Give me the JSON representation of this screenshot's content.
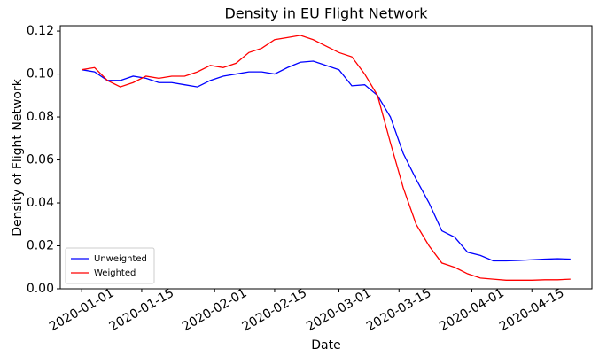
{
  "chart_data": {
    "type": "line",
    "title": "Density in EU Flight Network",
    "x_label": "Date",
    "y_label": "Density of Flight Network",
    "x": [
      "2020-01-01",
      "2020-01-04",
      "2020-01-07",
      "2020-01-10",
      "2020-01-13",
      "2020-01-16",
      "2020-01-19",
      "2020-01-22",
      "2020-01-25",
      "2020-01-28",
      "2020-01-31",
      "2020-02-03",
      "2020-02-06",
      "2020-02-09",
      "2020-02-12",
      "2020-02-15",
      "2020-02-18",
      "2020-02-21",
      "2020-02-24",
      "2020-02-27",
      "2020-03-01",
      "2020-03-04",
      "2020-03-07",
      "2020-03-10",
      "2020-03-13",
      "2020-03-16",
      "2020-03-19",
      "2020-03-22",
      "2020-03-25",
      "2020-03-28",
      "2020-03-31",
      "2020-04-03",
      "2020-04-06",
      "2020-04-09",
      "2020-04-12",
      "2020-04-15",
      "2020-04-18",
      "2020-04-21",
      "2020-04-24"
    ],
    "series": [
      {
        "name": "Unweighted",
        "color": "#0000ff",
        "values": [
          0.102,
          0.101,
          0.097,
          0.097,
          0.099,
          0.098,
          0.096,
          0.096,
          0.095,
          0.094,
          0.097,
          0.099,
          0.1,
          0.101,
          0.101,
          0.1,
          0.103,
          0.1055,
          0.106,
          0.104,
          0.102,
          0.0945,
          0.095,
          0.09,
          0.08,
          0.063,
          0.051,
          0.04,
          0.027,
          0.024,
          0.017,
          0.0155,
          0.013,
          0.013,
          0.0132,
          0.0135,
          0.0138,
          0.014,
          0.0138
        ]
      },
      {
        "name": "Weighted",
        "color": "#ff0000",
        "values": [
          0.102,
          0.103,
          0.097,
          0.094,
          0.096,
          0.099,
          0.098,
          0.099,
          0.099,
          0.101,
          0.104,
          0.103,
          0.105,
          0.11,
          0.112,
          0.116,
          0.117,
          0.118,
          0.116,
          0.113,
          0.11,
          0.108,
          0.1,
          0.09,
          0.068,
          0.047,
          0.03,
          0.02,
          0.012,
          0.01,
          0.007,
          0.005,
          0.0045,
          0.004,
          0.004,
          0.004,
          0.0042,
          0.0042,
          0.0045
        ]
      }
    ],
    "xlim": [
      "2019-12-27",
      "2020-04-29"
    ],
    "xticks": [
      "2020-01-01",
      "2020-01-15",
      "2020-02-01",
      "2020-02-15",
      "2020-03-01",
      "2020-03-15",
      "2020-04-01",
      "2020-04-15"
    ],
    "ylim": [
      0,
      0.1225
    ],
    "yticks": [
      {
        "value": 0,
        "label": "0.00"
      },
      0.02,
      0.04,
      0.06,
      0.08,
      {
        "value": 0.1,
        "label": "0.10"
      },
      0.12
    ],
    "grid": false,
    "legend": "lower left"
  }
}
